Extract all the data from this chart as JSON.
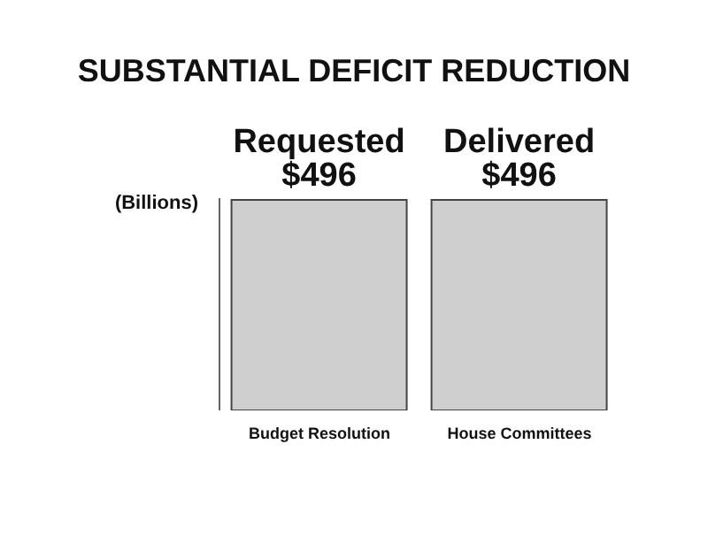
{
  "chart_data": {
    "type": "bar",
    "title": "SUBSTANTIAL DEFICIT REDUCTION",
    "ylabel": "(Billions)",
    "categories": [
      "Budget Resolution",
      "House Committees"
    ],
    "values": [
      496,
      496
    ],
    "value_labels": [
      "Requested $496",
      "Delivered $496"
    ],
    "color": "#cfcfcf",
    "ylim": [
      0,
      500
    ]
  }
}
